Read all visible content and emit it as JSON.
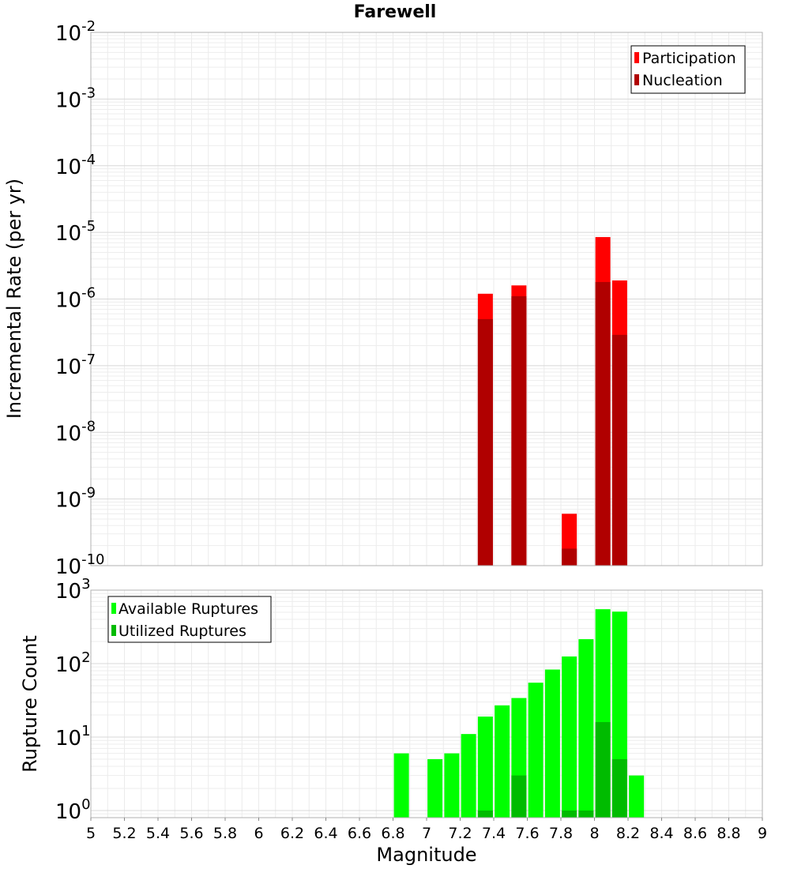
{
  "chart_data": [
    {
      "type": "bar",
      "title": "Farewell",
      "ylabel": "Incremental Rate (per yr)",
      "yscale": "log",
      "ylim": [
        1e-10,
        0.01
      ],
      "xlim": [
        5,
        9
      ],
      "y_ticks": [
        {
          "base": "10",
          "exp": "-2"
        },
        {
          "base": "10",
          "exp": "-3"
        },
        {
          "base": "10",
          "exp": "-4"
        },
        {
          "base": "10",
          "exp": "-5"
        },
        {
          "base": "10",
          "exp": "-6"
        },
        {
          "base": "10",
          "exp": "-7"
        },
        {
          "base": "10",
          "exp": "-8"
        },
        {
          "base": "10",
          "exp": "-9"
        },
        {
          "base": "10",
          "exp": "-10"
        }
      ],
      "legend_position": "top-right",
      "series": [
        {
          "name": "Participation",
          "color": "#ff0000",
          "points": [
            [
              7.35,
              1.2e-06
            ],
            [
              7.55,
              1.6e-06
            ],
            [
              7.85,
              6e-10
            ],
            [
              8.05,
              8.5e-06
            ],
            [
              8.15,
              1.9e-06
            ]
          ]
        },
        {
          "name": "Nucleation",
          "color": "#b00000",
          "points": [
            [
              7.35,
              5e-07
            ],
            [
              7.55,
              1.1e-06
            ],
            [
              7.85,
              1.8e-10
            ],
            [
              8.05,
              1.8e-06
            ],
            [
              8.15,
              2.9e-07
            ]
          ]
        }
      ]
    },
    {
      "type": "bar",
      "ylabel": "Rupture Count",
      "xlabel": "Magnitude",
      "yscale": "log",
      "ylim": [
        0.8,
        1000
      ],
      "xlim": [
        5,
        9
      ],
      "x_ticks": [
        "5",
        "5.2",
        "5.4",
        "5.6",
        "5.8",
        "6",
        "6.2",
        "6.4",
        "6.6",
        "6.8",
        "7",
        "7.2",
        "7.4",
        "7.6",
        "7.8",
        "8",
        "8.2",
        "8.4",
        "8.6",
        "8.8",
        "9"
      ],
      "y_ticks": [
        {
          "base": "10",
          "exp": "3",
          "value": 1000
        },
        {
          "base": "10",
          "exp": "2",
          "value": 100
        },
        {
          "base": "10",
          "exp": "1",
          "value": 10
        },
        {
          "base": "10",
          "exp": "0",
          "value": 1
        }
      ],
      "legend_position": "top-left",
      "series": [
        {
          "name": "Available Ruptures",
          "color": "#00ff00",
          "points": [
            [
              6.85,
              6
            ],
            [
              7.05,
              5
            ],
            [
              7.15,
              6
            ],
            [
              7.25,
              11
            ],
            [
              7.35,
              19
            ],
            [
              7.45,
              27
            ],
            [
              7.55,
              34
            ],
            [
              7.65,
              55
            ],
            [
              7.75,
              83
            ],
            [
              7.85,
              125
            ],
            [
              7.95,
              215
            ],
            [
              8.05,
              550
            ],
            [
              8.15,
              510
            ],
            [
              8.25,
              3
            ]
          ]
        },
        {
          "name": "Utilized Ruptures",
          "color": "#00bb00",
          "points": [
            [
              7.35,
              1
            ],
            [
              7.55,
              3
            ],
            [
              7.85,
              1
            ],
            [
              7.95,
              1
            ],
            [
              8.05,
              16
            ],
            [
              8.15,
              5
            ]
          ]
        }
      ]
    }
  ]
}
